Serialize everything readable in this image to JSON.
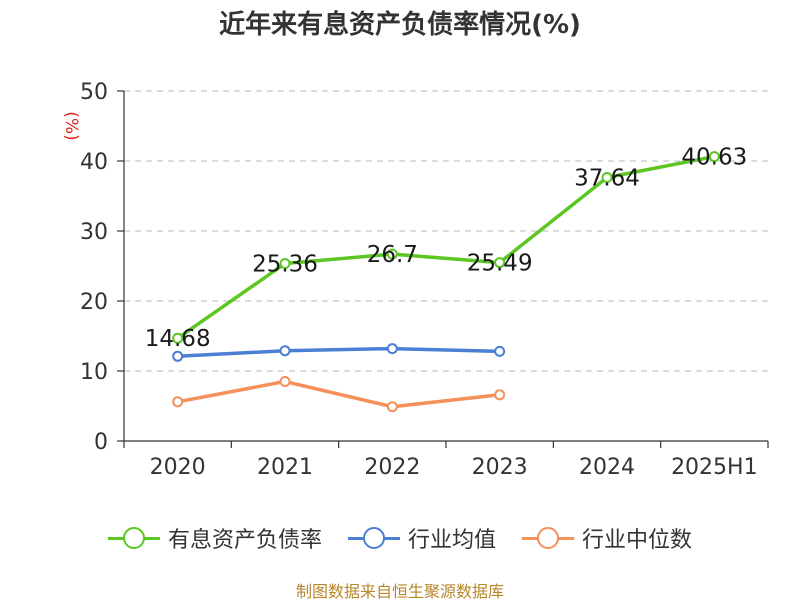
{
  "chart_data": {
    "type": "line",
    "title": "近年来有息资产负债率情况(%)",
    "ylabel": "(%)",
    "xlabel": "",
    "categories": [
      "2020",
      "2021",
      "2022",
      "2023",
      "2024",
      "2025H1"
    ],
    "ylim": [
      0,
      50
    ],
    "yticks": [
      0,
      10,
      20,
      30,
      40,
      50
    ],
    "grid": "horizontal dashed",
    "legend_position": "bottom",
    "series": [
      {
        "name": "有息资产负债率",
        "color": "#5cc622",
        "values": [
          14.68,
          25.36,
          26.7,
          25.49,
          37.64,
          40.63
        ],
        "labels": [
          "14.68",
          "25.36",
          "26.7",
          "25.49",
          "37.64",
          "40.63"
        ]
      },
      {
        "name": "行业均值",
        "color": "#4a7fd4",
        "values": [
          12.1,
          12.9,
          13.2,
          12.8,
          null,
          null
        ]
      },
      {
        "name": "行业中位数",
        "color": "#f5905a",
        "values": [
          5.6,
          8.5,
          4.9,
          6.6,
          null,
          null
        ]
      }
    ],
    "source": "制图数据来自恒生聚源数据库"
  }
}
